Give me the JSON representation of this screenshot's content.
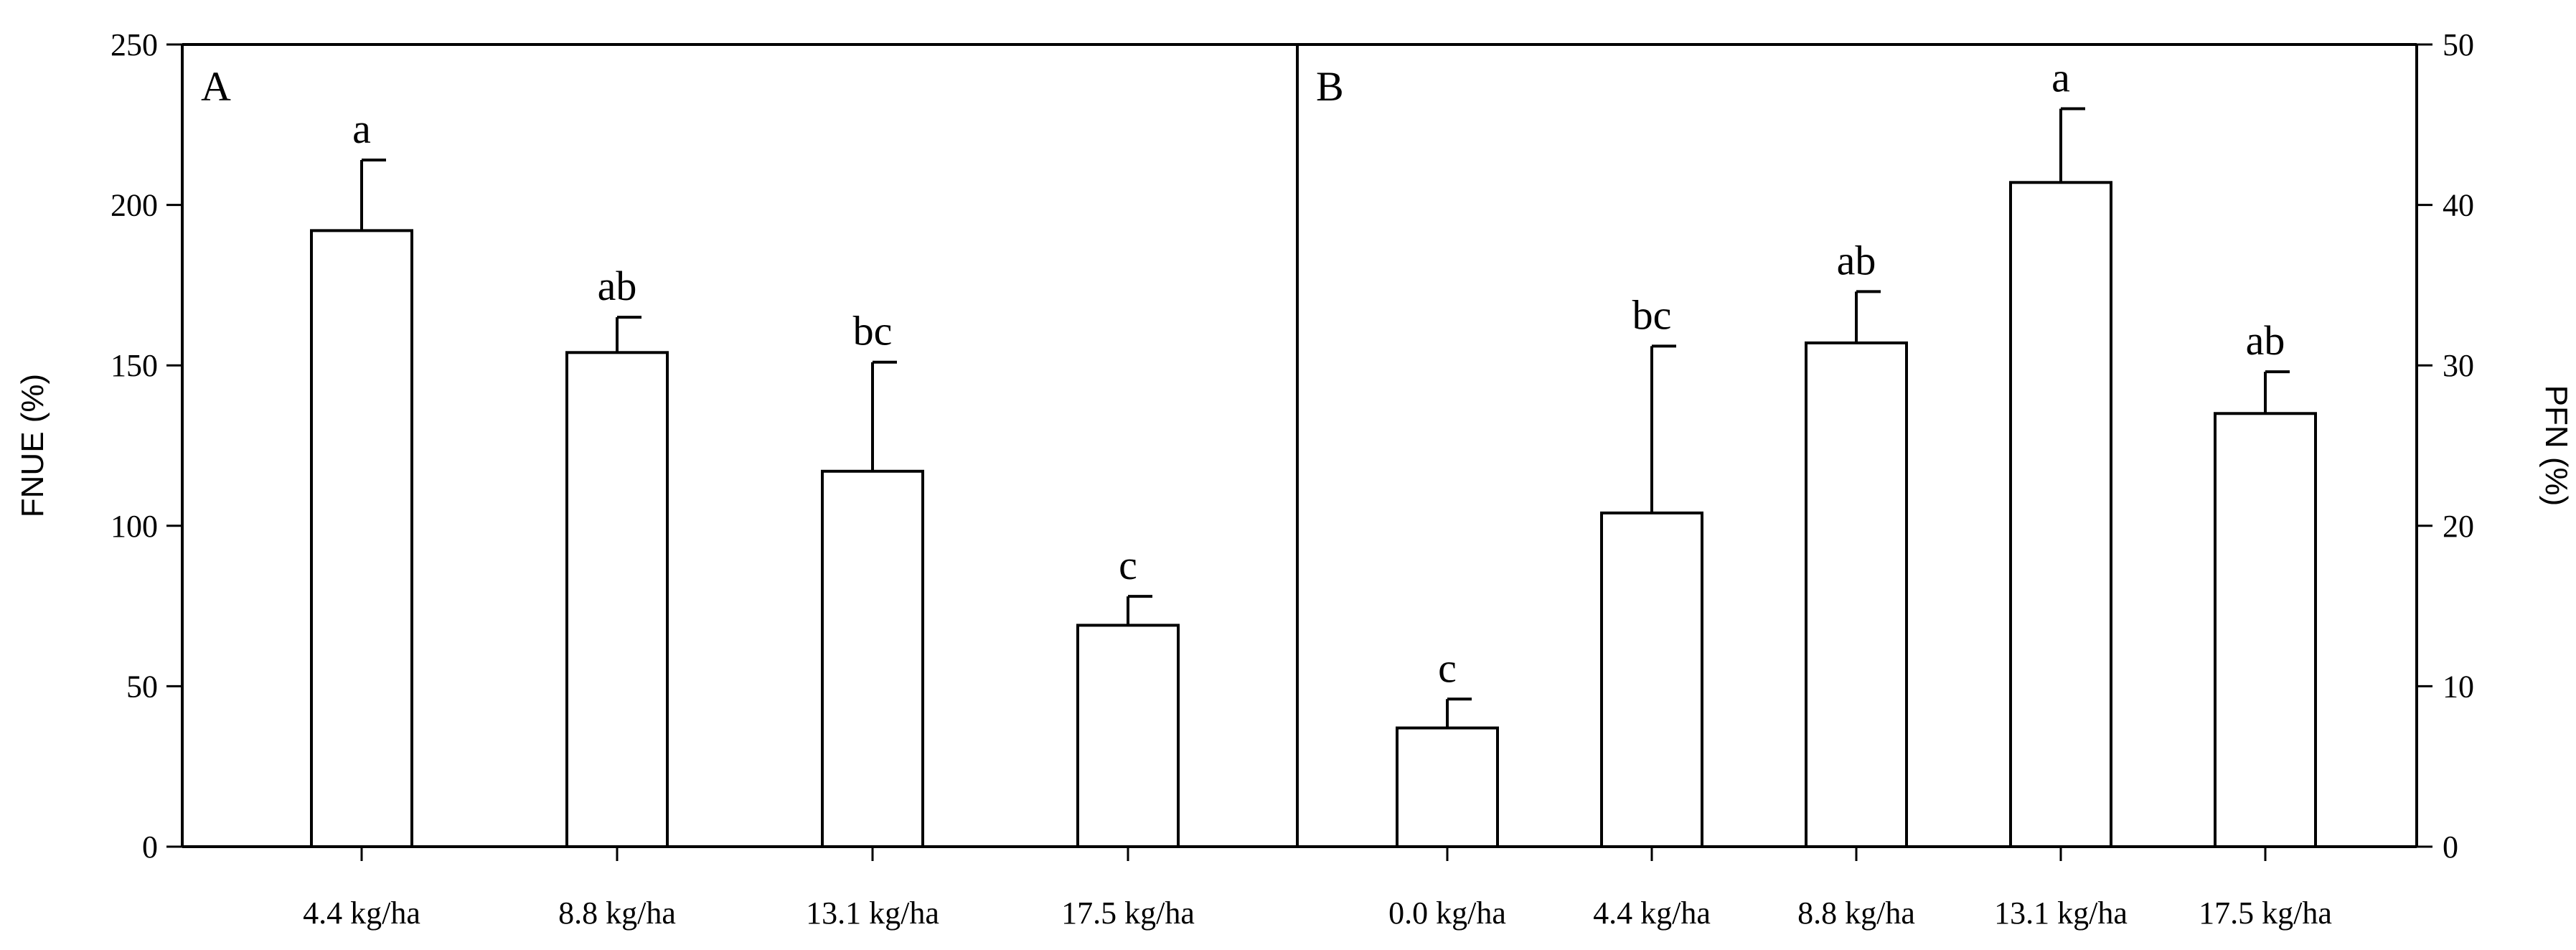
{
  "chart_data": [
    {
      "type": "bar",
      "panel": "A",
      "categories": [
        "4.4 kg/ha",
        "8.8 kg/ha",
        "13.1 kg/ha",
        "17.5 kg/ha"
      ],
      "values": [
        192,
        154,
        117,
        69
      ],
      "error": [
        22,
        11,
        34,
        9
      ],
      "significance": [
        "a",
        "ab",
        "bc",
        "c"
      ],
      "ylabel": "FNUE (%)",
      "ylim": [
        0,
        250
      ],
      "yticks": [
        "0",
        "50",
        "100",
        "150",
        "200",
        "250"
      ],
      "legend": "none",
      "grid": false
    },
    {
      "type": "bar",
      "panel": "B",
      "categories": [
        "0.0 kg/ha",
        "4.4 kg/ha",
        "8.8 kg/ha",
        "13.1 kg/ha",
        "17.5 kg/ha"
      ],
      "values": [
        7.4,
        20.8,
        31.4,
        41.4,
        27.0
      ],
      "error": [
        1.8,
        10.4,
        3.2,
        4.6,
        2.6
      ],
      "significance": [
        "c",
        "bc",
        "ab",
        "a",
        "ab"
      ],
      "ylabel": "PFN (%)",
      "ylim": [
        0,
        50
      ],
      "yticks": [
        "0",
        "10",
        "20",
        "30",
        "40",
        "50"
      ],
      "legend": "none",
      "grid": false
    }
  ]
}
